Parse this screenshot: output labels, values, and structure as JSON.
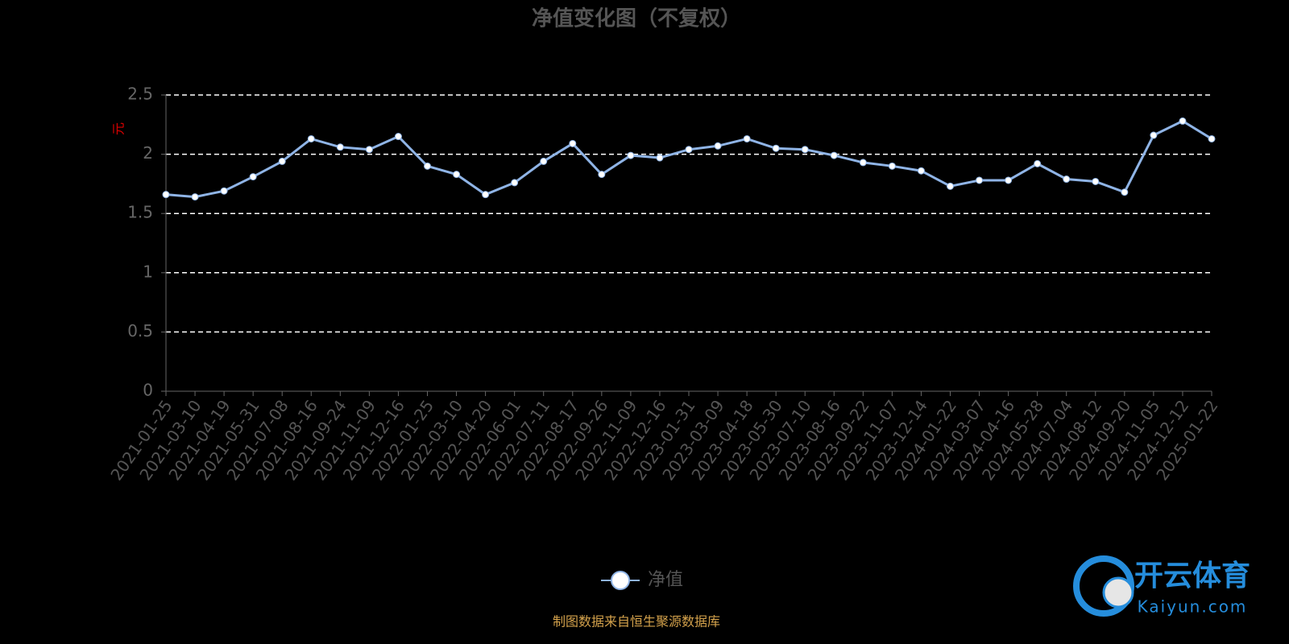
{
  "chart_data": {
    "type": "line",
    "title": "净值变化图（不复权）",
    "y_label": "元",
    "categories": [
      "2021-01-25",
      "2021-03-10",
      "2021-04-19",
      "2021-05-31",
      "2021-07-08",
      "2021-08-16",
      "2021-09-24",
      "2021-11-09",
      "2021-12-16",
      "2022-01-25",
      "2022-03-10",
      "2022-04-20",
      "2022-06-01",
      "2022-07-11",
      "2022-08-17",
      "2022-09-26",
      "2022-11-09",
      "2022-12-16",
      "2023-01-31",
      "2023-03-09",
      "2023-04-18",
      "2023-05-30",
      "2023-07-10",
      "2023-08-16",
      "2023-09-22",
      "2023-11-07",
      "2023-12-14",
      "2024-01-22",
      "2024-03-07",
      "2024-04-16",
      "2024-05-28",
      "2024-07-04",
      "2024-08-12",
      "2024-09-20",
      "2024-11-05",
      "2024-12-12",
      "2025-01-22"
    ],
    "series": [
      {
        "name": "净值",
        "color": "#8fb4e6",
        "values": [
          1.66,
          1.64,
          1.69,
          1.81,
          1.94,
          2.13,
          2.06,
          2.04,
          2.15,
          1.9,
          1.83,
          1.66,
          1.76,
          1.94,
          2.09,
          1.83,
          1.99,
          1.97,
          2.04,
          2.07,
          2.13,
          2.05,
          2.04,
          1.99,
          1.93,
          1.9,
          1.86,
          1.73,
          1.78,
          1.78,
          1.92,
          1.79,
          1.77,
          1.68,
          2.16,
          2.28,
          2.13
        ]
      }
    ],
    "ylim": [
      0,
      2.5
    ],
    "yticks": [
      0,
      0.5,
      1,
      1.5,
      2,
      2.5
    ],
    "grid": true,
    "source": "制图数据来自恒生聚源数据库",
    "watermark": {
      "name": "开云体育",
      "url": "Kaiyun.com"
    }
  }
}
